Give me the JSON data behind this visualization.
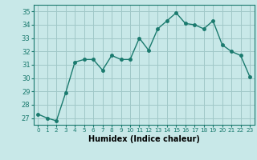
{
  "x": [
    0,
    1,
    2,
    3,
    4,
    5,
    6,
    7,
    8,
    9,
    10,
    11,
    12,
    13,
    14,
    15,
    16,
    17,
    18,
    19,
    20,
    21,
    22,
    23
  ],
  "y": [
    27.3,
    27.0,
    26.8,
    28.9,
    31.2,
    31.4,
    31.4,
    30.6,
    31.7,
    31.4,
    31.4,
    33.0,
    32.1,
    33.7,
    34.3,
    34.9,
    34.1,
    34.0,
    33.7,
    34.3,
    32.5,
    32.0,
    31.7,
    30.1
  ],
  "line_color": "#1a7a6e",
  "bg_color": "#c8e8e8",
  "grid_color": "#a0c8c8",
  "xlabel": "Humidex (Indice chaleur)",
  "ylim": [
    26.5,
    35.5
  ],
  "xlim": [
    -0.5,
    23.5
  ],
  "yticks": [
    27,
    28,
    29,
    30,
    31,
    32,
    33,
    34,
    35
  ],
  "xtick_labels": [
    "0",
    "1",
    "2",
    "3",
    "4",
    "5",
    "6",
    "7",
    "8",
    "9",
    "10",
    "11",
    "12",
    "13",
    "14",
    "15",
    "16",
    "17",
    "18",
    "19",
    "20",
    "21",
    "22",
    "23"
  ],
  "marker_size": 2.5,
  "line_width": 1.0
}
